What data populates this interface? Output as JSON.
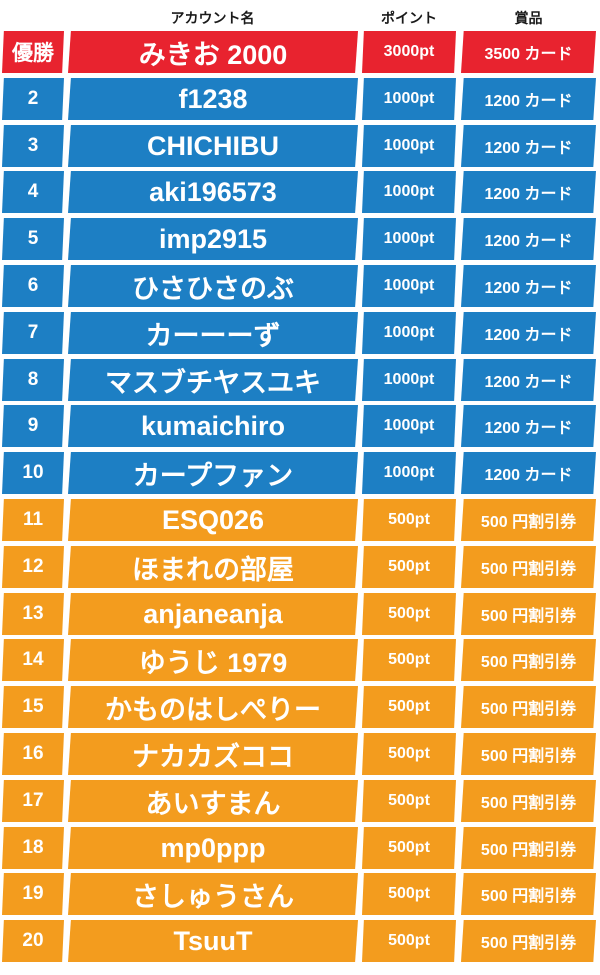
{
  "header": {
    "account": "アカウント名",
    "points": "ポイント",
    "prize": "賞品"
  },
  "colors": {
    "first": "#e8232f",
    "top10": "#1d7fc4",
    "rest": "#f39c1e"
  },
  "rows": [
    {
      "rank": "優勝",
      "name": "みきお 2000",
      "points": "3000pt",
      "prize": "3500 カード",
      "tier": "first"
    },
    {
      "rank": "2",
      "name": "f1238",
      "points": "1000pt",
      "prize": "1200 カード",
      "tier": "top10"
    },
    {
      "rank": "3",
      "name": "CHICHIBU",
      "points": "1000pt",
      "prize": "1200 カード",
      "tier": "top10"
    },
    {
      "rank": "4",
      "name": "aki196573",
      "points": "1000pt",
      "prize": "1200 カード",
      "tier": "top10"
    },
    {
      "rank": "5",
      "name": "imp2915",
      "points": "1000pt",
      "prize": "1200 カード",
      "tier": "top10"
    },
    {
      "rank": "6",
      "name": "ひさひさのぶ",
      "points": "1000pt",
      "prize": "1200 カード",
      "tier": "top10"
    },
    {
      "rank": "7",
      "name": "カーーーず",
      "points": "1000pt",
      "prize": "1200 カード",
      "tier": "top10"
    },
    {
      "rank": "8",
      "name": "マスブチヤスユキ",
      "points": "1000pt",
      "prize": "1200 カード",
      "tier": "top10"
    },
    {
      "rank": "9",
      "name": "kumaichiro",
      "points": "1000pt",
      "prize": "1200 カード",
      "tier": "top10"
    },
    {
      "rank": "10",
      "name": "カープファン",
      "points": "1000pt",
      "prize": "1200 カード",
      "tier": "top10"
    },
    {
      "rank": "11",
      "name": "ESQ026",
      "points": "500pt",
      "prize": "500 円割引券",
      "tier": "rest"
    },
    {
      "rank": "12",
      "name": "ほまれの部屋",
      "points": "500pt",
      "prize": "500 円割引券",
      "tier": "rest"
    },
    {
      "rank": "13",
      "name": "anjaneanja",
      "points": "500pt",
      "prize": "500 円割引券",
      "tier": "rest"
    },
    {
      "rank": "14",
      "name": "ゆうじ 1979",
      "points": "500pt",
      "prize": "500 円割引券",
      "tier": "rest"
    },
    {
      "rank": "15",
      "name": "かものはしぺりー",
      "points": "500pt",
      "prize": "500 円割引券",
      "tier": "rest"
    },
    {
      "rank": "16",
      "name": "ナカカズココ",
      "points": "500pt",
      "prize": "500 円割引券",
      "tier": "rest"
    },
    {
      "rank": "17",
      "name": "あいすまん",
      "points": "500pt",
      "prize": "500 円割引券",
      "tier": "rest"
    },
    {
      "rank": "18",
      "name": "mp0ppp",
      "points": "500pt",
      "prize": "500 円割引券",
      "tier": "rest"
    },
    {
      "rank": "19",
      "name": "さしゅうさん",
      "points": "500pt",
      "prize": "500 円割引券",
      "tier": "rest"
    },
    {
      "rank": "20",
      "name": "TsuuT",
      "points": "500pt",
      "prize": "500 円割引券",
      "tier": "rest"
    }
  ]
}
